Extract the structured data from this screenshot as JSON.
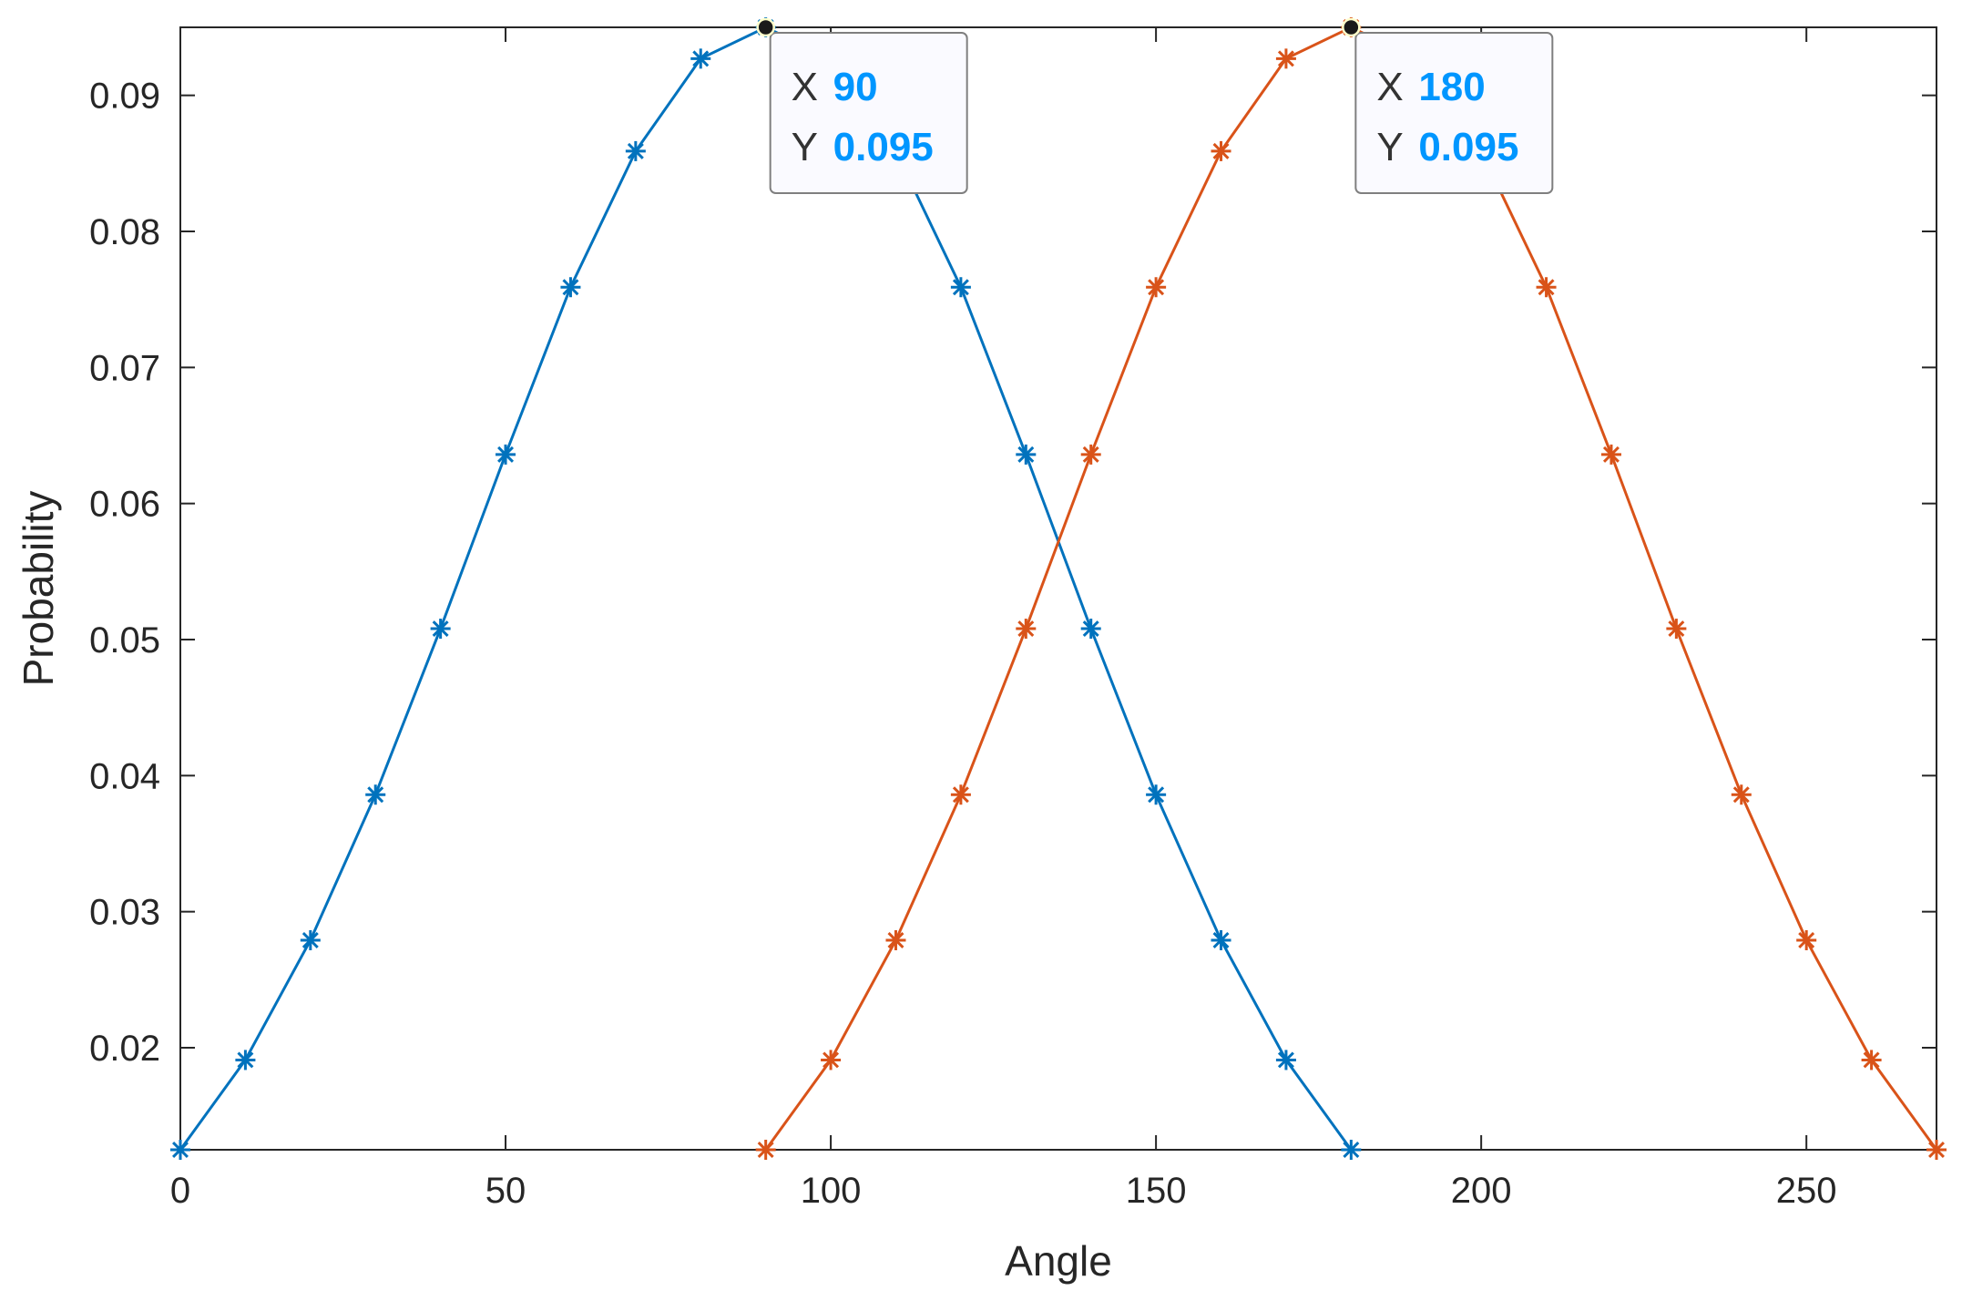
{
  "chart_data": {
    "type": "line",
    "title": "",
    "xlabel": "Angle",
    "ylabel": "Probability",
    "xlim": [
      0,
      270
    ],
    "ylim": [
      0.0125,
      0.095
    ],
    "xticks": [
      0,
      50,
      100,
      150,
      200,
      250
    ],
    "xtick_labels": [
      "0",
      "50",
      "100",
      "150",
      "200",
      "250"
    ],
    "yticks": [
      0.02,
      0.03,
      0.04,
      0.05,
      0.06,
      0.07,
      0.08,
      0.09
    ],
    "ytick_labels": [
      "0.02",
      "0.03",
      "0.04",
      "0.05",
      "0.06",
      "0.07",
      "0.08",
      "0.09"
    ],
    "grid": false,
    "marker": "asterisk",
    "series": [
      {
        "color": "#0072bd",
        "x": [
          0,
          10,
          20,
          30,
          40,
          50,
          60,
          70,
          80,
          90,
          100,
          110,
          120,
          130,
          140,
          150,
          160,
          170,
          180
        ],
        "y": [
          0.0125,
          0.0191,
          0.0279,
          0.0386,
          0.0508,
          0.0636,
          0.0759,
          0.0859,
          0.0927,
          0.095,
          0.0927,
          0.0859,
          0.0759,
          0.0636,
          0.0508,
          0.0386,
          0.0279,
          0.0191,
          0.0125
        ]
      },
      {
        "color": "#d95319",
        "x": [
          90,
          100,
          110,
          120,
          130,
          140,
          150,
          160,
          170,
          180,
          190,
          200,
          210,
          220,
          230,
          240,
          250,
          260,
          270
        ],
        "y": [
          0.0125,
          0.0191,
          0.0279,
          0.0386,
          0.0508,
          0.0636,
          0.0759,
          0.0859,
          0.0927,
          0.095,
          0.0927,
          0.0859,
          0.0759,
          0.0636,
          0.0508,
          0.0386,
          0.0279,
          0.0191,
          0.0125
        ]
      }
    ],
    "datatips": [
      {
        "x": 90,
        "y": 0.095,
        "x_key": "X",
        "y_key": "Y",
        "x_text": "90",
        "y_text": "0.095"
      },
      {
        "x": 180,
        "y": 0.095,
        "x_key": "X",
        "y_key": "Y",
        "x_text": "180",
        "y_text": "0.095"
      }
    ]
  }
}
